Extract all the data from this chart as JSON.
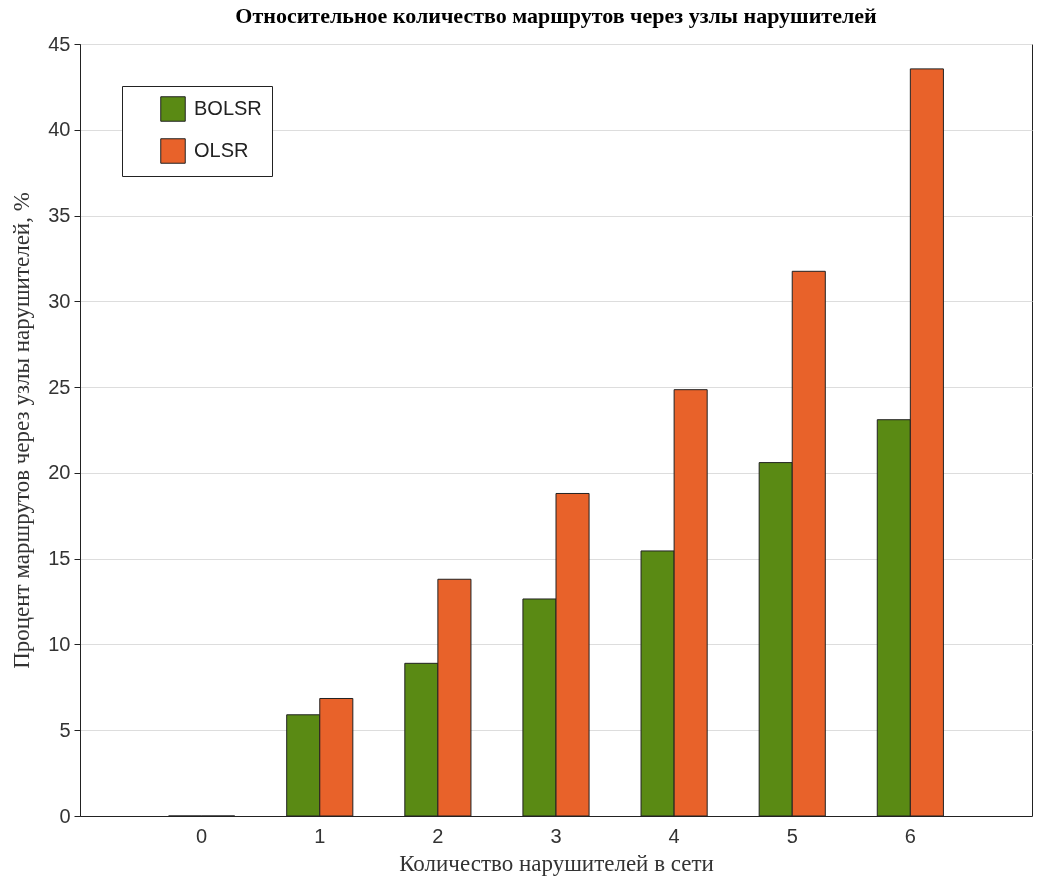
{
  "chart_data": {
    "type": "bar",
    "title": "Относительное количество маршрутов через узлы нарушителей",
    "xlabel": "Количество нарушителей в сети",
    "ylabel": "Процент маршрутов через узлы нарушителей, %",
    "categories": [
      "0",
      "1",
      "2",
      "3",
      "4",
      "5",
      "6"
    ],
    "series": [
      {
        "name": "BOLSR",
        "color": "#5a8a14",
        "values": [
          0,
          5.9,
          8.9,
          12.65,
          15.45,
          20.6,
          23.1
        ]
      },
      {
        "name": "OLSR",
        "color": "#e8622a",
        "values": [
          0,
          6.85,
          13.8,
          18.8,
          24.85,
          31.75,
          43.55
        ]
      }
    ],
    "ylim": [
      0,
      45
    ],
    "yticks": [
      0,
      5,
      10,
      15,
      20,
      25,
      30,
      35,
      40,
      45
    ],
    "grid": "y",
    "legend": "top left"
  }
}
